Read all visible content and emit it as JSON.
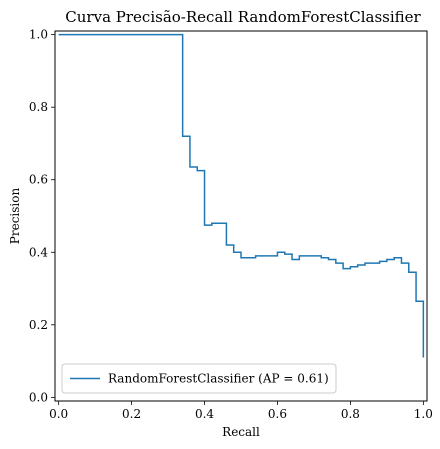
{
  "chart_data": {
    "type": "line",
    "title": "Curva Precisão-Recall RandomForestClassifier",
    "xlabel": "Recall",
    "ylabel": "Precision",
    "xlim": [
      -0.01,
      1.01
    ],
    "ylim": [
      -0.01,
      1.01
    ],
    "xticks": [
      0.0,
      0.2,
      0.4,
      0.6,
      0.8,
      1.0
    ],
    "yticks": [
      0.0,
      0.2,
      0.4,
      0.6,
      0.8,
      1.0
    ],
    "tick_labels_x": [
      "0.0",
      "0.2",
      "0.4",
      "0.6",
      "0.8",
      "1.0"
    ],
    "tick_labels_y": [
      "0.0",
      "0.2",
      "0.4",
      "0.6",
      "0.8",
      "1.0"
    ],
    "grid": false,
    "legend_position": "lower-left",
    "series": [
      {
        "name": "RandomForestClassifier (AP = 0.61)",
        "color": "#1f77b4",
        "step": "post",
        "x": [
          0.0,
          0.34,
          0.34,
          0.36,
          0.36,
          0.38,
          0.38,
          0.4,
          0.4,
          0.42,
          0.44,
          0.46,
          0.46,
          0.48,
          0.48,
          0.5,
          0.5,
          0.52,
          0.52,
          0.54,
          0.56,
          0.58,
          0.6,
          0.6,
          0.62,
          0.64,
          0.66,
          0.66,
          0.7,
          0.72,
          0.74,
          0.76,
          0.78,
          0.78,
          0.8,
          0.82,
          0.84,
          0.86,
          0.88,
          0.9,
          0.92,
          0.94,
          0.96,
          0.98,
          0.98,
          1.0
        ],
        "y": [
          1.0,
          1.0,
          0.72,
          0.72,
          0.635,
          0.635,
          0.625,
          0.625,
          0.475,
          0.48,
          0.48,
          0.445,
          0.42,
          0.42,
          0.4,
          0.4,
          0.385,
          0.385,
          0.385,
          0.39,
          0.39,
          0.39,
          0.395,
          0.4,
          0.395,
          0.38,
          0.39,
          0.39,
          0.39,
          0.385,
          0.38,
          0.37,
          0.365,
          0.355,
          0.36,
          0.365,
          0.37,
          0.37,
          0.375,
          0.38,
          0.385,
          0.37,
          0.345,
          0.345,
          0.265,
          0.11
        ]
      }
    ]
  }
}
